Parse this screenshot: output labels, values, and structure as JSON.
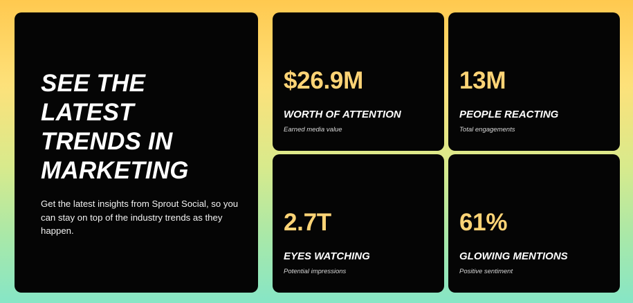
{
  "hero": {
    "title_lines": [
      "SEE THE",
      "LATEST",
      "TRENDS IN",
      "MARKETING"
    ],
    "description": "Get the latest insights from Sprout Social, so you can stay on top of the industry trends as they happen."
  },
  "stats": [
    {
      "value": "$26.9M",
      "label": "WORTH OF ATTENTION",
      "sub": "Earned media value"
    },
    {
      "value": "13M",
      "label": "PEOPLE REACTING",
      "sub": "Total engagements"
    },
    {
      "value": "2.7T",
      "label": "EYES WATCHING",
      "sub": "Potential impressions"
    },
    {
      "value": "61%",
      "label": "GLOWING MENTIONS",
      "sub": "Positive sentiment"
    }
  ],
  "colors": {
    "card_bg": "#050505",
    "value_accent": "#ffd476",
    "gradient_top": "#ffc94f",
    "gradient_bottom": "#86e6c6"
  }
}
